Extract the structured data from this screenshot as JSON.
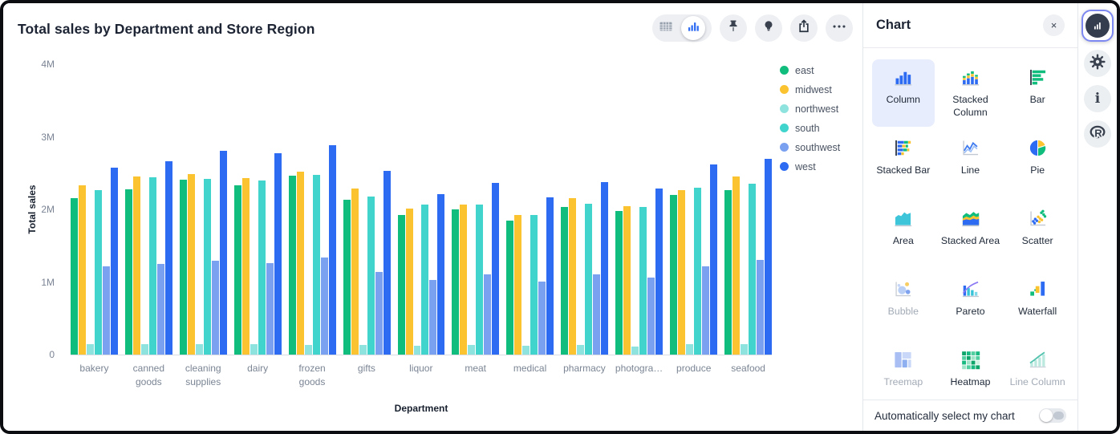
{
  "header": {
    "title": "Total sales by Department and Store Region"
  },
  "toolbar": {
    "view_toggle": {
      "options": [
        {
          "name": "table-view",
          "icon": "table-view-icon",
          "selected": false
        },
        {
          "name": "chart-view",
          "icon": "chart-view-icon",
          "selected": true
        }
      ]
    },
    "buttons": [
      {
        "name": "pin",
        "icon": "pin-icon"
      },
      {
        "name": "insights",
        "icon": "lightbulb-icon"
      },
      {
        "name": "share",
        "icon": "share-icon"
      },
      {
        "name": "more-options",
        "icon": "ellipsis-icon"
      }
    ]
  },
  "chart_data": {
    "type": "bar",
    "title": "Total sales by Department and Store Region",
    "xlabel": "Department",
    "ylabel": "Total sales",
    "values_unit": "millions",
    "ylim": [
      0,
      4
    ],
    "yticks": [
      {
        "label": "4M",
        "value": 4
      },
      {
        "label": "3M",
        "value": 3
      },
      {
        "label": "2M",
        "value": 2
      },
      {
        "label": "1M",
        "value": 1
      },
      {
        "label": "0",
        "value": 0
      }
    ],
    "grid": false,
    "legend_position": "right",
    "categories": [
      "bakery",
      "canned goods",
      "cleaning supplies",
      "dairy",
      "frozen goods",
      "gifts",
      "liquor",
      "meat",
      "medical",
      "pharmacy",
      "photogra…",
      "produce",
      "seafood"
    ],
    "series": [
      {
        "name": "east",
        "color": "#10BD7D",
        "values": [
          2.15,
          2.28,
          2.41,
          2.33,
          2.46,
          2.13,
          1.92,
          2.0,
          1.85,
          2.03,
          1.98,
          2.2,
          2.27
        ]
      },
      {
        "name": "midwest",
        "color": "#FAC32F",
        "values": [
          2.33,
          2.45,
          2.49,
          2.43,
          2.52,
          2.29,
          2.01,
          2.07,
          1.92,
          2.15,
          2.04,
          2.27,
          2.45
        ]
      },
      {
        "name": "northwest",
        "color": "#8FE3DF",
        "values": [
          0.14,
          0.14,
          0.14,
          0.14,
          0.13,
          0.13,
          0.12,
          0.13,
          0.12,
          0.13,
          0.11,
          0.14,
          0.14
        ]
      },
      {
        "name": "south",
        "color": "#41D4CD",
        "values": [
          2.27,
          2.44,
          2.42,
          2.4,
          2.47,
          2.18,
          2.07,
          2.07,
          1.92,
          2.08,
          2.03,
          2.3,
          2.35
        ]
      },
      {
        "name": "southwest",
        "color": "#7AA0F0",
        "values": [
          1.21,
          1.25,
          1.29,
          1.26,
          1.34,
          1.14,
          1.03,
          1.11,
          1.01,
          1.1,
          1.06,
          1.22,
          1.3
        ]
      },
      {
        "name": "west",
        "color": "#2D6BF2",
        "values": [
          2.57,
          2.66,
          2.81,
          2.77,
          2.88,
          2.53,
          2.21,
          2.37,
          2.17,
          2.38,
          2.29,
          2.62,
          2.7
        ]
      }
    ]
  },
  "panel": {
    "title": "Chart",
    "close_icon": "×",
    "chart_types": [
      {
        "label": "Column",
        "icon": "column-icon",
        "selected": true,
        "enabled": true
      },
      {
        "label": "Stacked Column",
        "icon": "stacked-column-icon",
        "selected": false,
        "enabled": true
      },
      {
        "label": "Bar",
        "icon": "bar-icon",
        "selected": false,
        "enabled": true
      },
      {
        "label": "Stacked Bar",
        "icon": "stacked-bar-icon",
        "selected": false,
        "enabled": true
      },
      {
        "label": "Line",
        "icon": "line-icon",
        "selected": false,
        "enabled": true
      },
      {
        "label": "Pie",
        "icon": "pie-icon",
        "selected": false,
        "enabled": true
      },
      {
        "label": "Area",
        "icon": "area-icon",
        "selected": false,
        "enabled": true
      },
      {
        "label": "Stacked Area",
        "icon": "stacked-area-icon",
        "selected": false,
        "enabled": true
      },
      {
        "label": "Scatter",
        "icon": "scatter-icon",
        "selected": false,
        "enabled": true
      },
      {
        "label": "Bubble",
        "icon": "bubble-icon",
        "selected": false,
        "enabled": false
      },
      {
        "label": "Pareto",
        "icon": "pareto-icon",
        "selected": false,
        "enabled": true
      },
      {
        "label": "Waterfall",
        "icon": "waterfall-icon",
        "selected": false,
        "enabled": true
      },
      {
        "label": "Treemap",
        "icon": "treemap-icon",
        "selected": false,
        "enabled": false
      },
      {
        "label": "Heatmap",
        "icon": "heatmap-icon",
        "selected": false,
        "enabled": true
      },
      {
        "label": "Line Column",
        "icon": "line-column-icon",
        "selected": false,
        "enabled": false
      }
    ],
    "footer": {
      "label": "Automatically select my chart",
      "toggle_on": false
    }
  },
  "rail": {
    "items": [
      {
        "name": "chart",
        "icon": "chart-panel-icon",
        "selected": true
      },
      {
        "name": "settings",
        "icon": "gear-icon",
        "selected": false
      },
      {
        "name": "info",
        "icon": "info-icon",
        "selected": false
      },
      {
        "name": "r-code",
        "icon": "r-logo-icon",
        "selected": false
      }
    ]
  }
}
